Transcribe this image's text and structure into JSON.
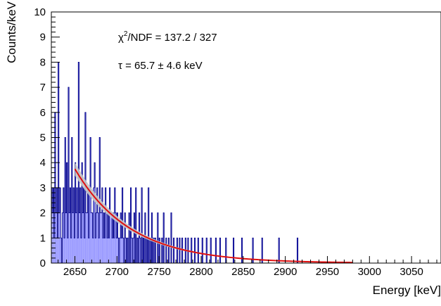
{
  "chart_data": {
    "type": "histogram",
    "xlabel": "Energy [keV]",
    "ylabel": "Counts/keV",
    "xlim": [
      2622,
      3085
    ],
    "ylim": [
      0,
      10
    ],
    "bin_width_keV": 1,
    "x_ticks": [
      "2650",
      "2700",
      "2750",
      "2800",
      "2850",
      "2900",
      "2950",
      "3000",
      "3050"
    ],
    "x_tick_values": [
      2650,
      2700,
      2750,
      2800,
      2850,
      2900,
      2950,
      3000,
      3050
    ],
    "y_ticks": [
      "0",
      "1",
      "2",
      "3",
      "4",
      "5",
      "6",
      "7",
      "8",
      "9",
      "10"
    ],
    "y_tick_values": [
      0,
      1,
      2,
      3,
      4,
      5,
      6,
      7,
      8,
      9,
      10
    ],
    "annotations": {
      "chi2_symbol": "χ",
      "chi2_sup": "2",
      "chi2_text": "/NDF = 137.2 / 327",
      "tau_text": "τ = 65.7 ± 4.6 keV"
    },
    "histogram": {
      "fill_color": "#9b9bff",
      "line_color": "#00008b",
      "counts": [
        3,
        2,
        3,
        1,
        6,
        2,
        3,
        1,
        8,
        2,
        3,
        1,
        0,
        2,
        3,
        1,
        5,
        2,
        4,
        1,
        7,
        2,
        3,
        1,
        5,
        2,
        3,
        1,
        4,
        2,
        3,
        1,
        8,
        2,
        3,
        1,
        4,
        2,
        3,
        1,
        6,
        2,
        2,
        3,
        1,
        3,
        5,
        2,
        2,
        1,
        3,
        4,
        1,
        2,
        3,
        2,
        1,
        5,
        2,
        2,
        3,
        1,
        2,
        1,
        3,
        2,
        1,
        2,
        1,
        3,
        2,
        2,
        1,
        2,
        1,
        3,
        2,
        1,
        2,
        1,
        0,
        1,
        2,
        1,
        3,
        1,
        0,
        2,
        1,
        0,
        1,
        0,
        2,
        0,
        3,
        1,
        0,
        1,
        2,
        0,
        3,
        0,
        1,
        0,
        2,
        1,
        0,
        3,
        0,
        1,
        0,
        2,
        0,
        1,
        0,
        3,
        0,
        1,
        0,
        2,
        0,
        1,
        0,
        1,
        0,
        0,
        2,
        0,
        1,
        0,
        0,
        1,
        0,
        2,
        0,
        0,
        1,
        0,
        0,
        1,
        0,
        0,
        2,
        0,
        0,
        1,
        0,
        0,
        0,
        1,
        0,
        0,
        1,
        0,
        0,
        1,
        0,
        0,
        0,
        1,
        0,
        0,
        1,
        0,
        0,
        0,
        1,
        0,
        0,
        0,
        1,
        0,
        0,
        0,
        1,
        0,
        0,
        0,
        0,
        1,
        0,
        0,
        0,
        0,
        1,
        0,
        0,
        0,
        0,
        1,
        0,
        0,
        0,
        0,
        0,
        1,
        0,
        0,
        0,
        0,
        1,
        0,
        0,
        0,
        0,
        0,
        0,
        1,
        0,
        0,
        0,
        0,
        0,
        0,
        0,
        0,
        1,
        0,
        0,
        0,
        0,
        0,
        0,
        0,
        0,
        0,
        1,
        0,
        0,
        0,
        0,
        0,
        0,
        0,
        0,
        0,
        0,
        0,
        0,
        1,
        0,
        0,
        0,
        0,
        0,
        0,
        0,
        0,
        0,
        0,
        1,
        0,
        0,
        0,
        0,
        0,
        0,
        0,
        0,
        0,
        0,
        0,
        0,
        0,
        0,
        0,
        0,
        0,
        0,
        0,
        1,
        0,
        0,
        0,
        0,
        0,
        0,
        0,
        0,
        0,
        0,
        0,
        0,
        0,
        0,
        0,
        0,
        0,
        0,
        0,
        0,
        0,
        1,
        0,
        0,
        0,
        0,
        0,
        0,
        0,
        0,
        0,
        0,
        0,
        0,
        0,
        0,
        0,
        0,
        0,
        0,
        0,
        0,
        0,
        0,
        0,
        0,
        0,
        0,
        0,
        0,
        0,
        0,
        0,
        0,
        0,
        0,
        0,
        0,
        0,
        0,
        0,
        0,
        0,
        0,
        0,
        0,
        0,
        0,
        0,
        0,
        0,
        0,
        0,
        0,
        0,
        0,
        0,
        0,
        0,
        0,
        0,
        0,
        0,
        0,
        0,
        0,
        0,
        0,
        0,
        0,
        0,
        0,
        0,
        0,
        0,
        0,
        0,
        0,
        0,
        0,
        0,
        0,
        0,
        0,
        0,
        0,
        0,
        0,
        0,
        0,
        0,
        0,
        0,
        0,
        0,
        0,
        0,
        0,
        0,
        0,
        0,
        0,
        0,
        0,
        0,
        0,
        0,
        0,
        0,
        0,
        0,
        0,
        0,
        0,
        0,
        0,
        0,
        0,
        0,
        0,
        0,
        0,
        0,
        0,
        0,
        0,
        0,
        0,
        0,
        0,
        0,
        0,
        0,
        0,
        0,
        0,
        0,
        0,
        0,
        0,
        0,
        0,
        0,
        0,
        0,
        0,
        0,
        0,
        0,
        0,
        0,
        0,
        0,
        0,
        0,
        0,
        0,
        0,
        0,
        0,
        0,
        0,
        0,
        0,
        0,
        0,
        0,
        0,
        0
      ]
    },
    "fit": {
      "function": "exponential",
      "x_range": [
        2650,
        2980
      ],
      "amplitude_at_2650": 3.75,
      "tau_keV": 65.7,
      "band_fraction": 0.07,
      "line_color": "#e01010",
      "band_color": "#c8c8c8"
    }
  }
}
